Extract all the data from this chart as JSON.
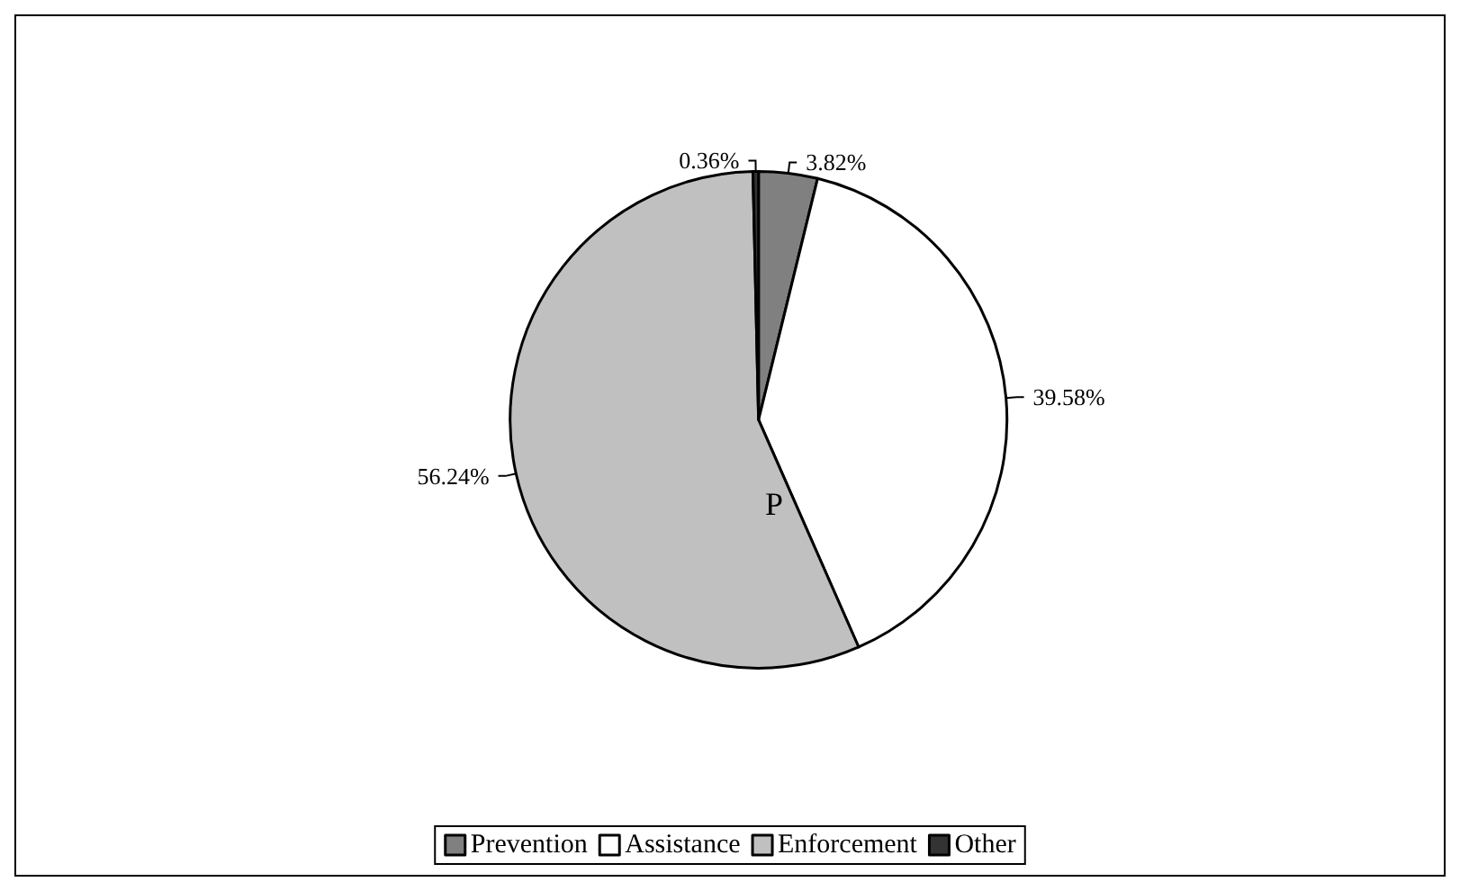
{
  "chart_data": {
    "type": "pie",
    "categories": [
      "Prevention",
      "Assistance",
      "Enforcement",
      "Other"
    ],
    "values": [
      3.82,
      39.58,
      56.24,
      0.36
    ],
    "value_labels": [
      "3.82%",
      "39.58%",
      "56.24%",
      "0.36%"
    ],
    "colors": [
      "#808080",
      "#ffffff",
      "#c0c0c0",
      "#333333"
    ],
    "annotations": [
      "P"
    ],
    "legend": "bottom"
  }
}
